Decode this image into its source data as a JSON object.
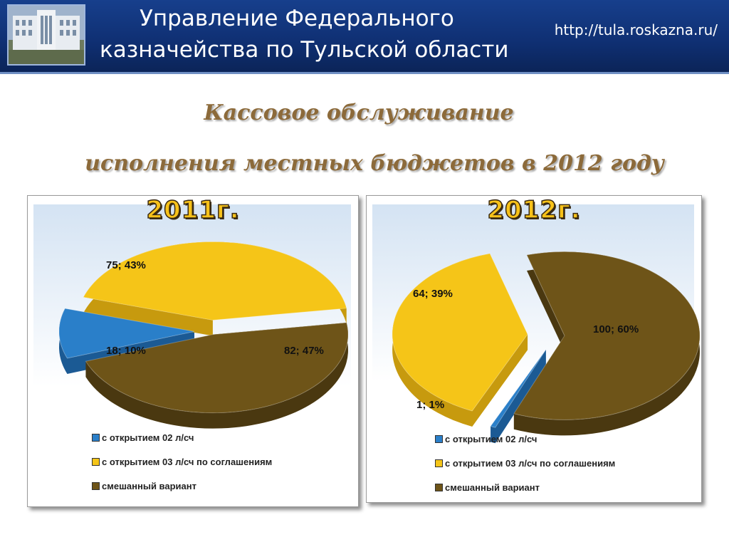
{
  "header": {
    "org_line1": "Управление Федерального",
    "org_line2": "казначейства по Тульской области",
    "url": "http://tula.roskazna.ru/"
  },
  "title": {
    "line1": "Кассовое обслуживание",
    "line2": "исполнения  местных бюджетов в 2012 году"
  },
  "colors": {
    "blue": "#2a7fc9",
    "yellow": "#f5c518",
    "brown": "#6e5418",
    "title": "#8c6a3a"
  },
  "legend": [
    "с открытием 02 л/сч",
    "с открытием 03 л/сч по соглашениям",
    "смешанный вариант"
  ],
  "chart_data": [
    {
      "type": "pie",
      "title": "2011г.",
      "categories": [
        "с открытием 02 л/сч",
        "с открытием 03 л/сч по соглашениям",
        "смешанный вариант"
      ],
      "values": [
        18,
        75,
        82
      ],
      "percents": [
        10,
        43,
        47
      ],
      "labels": [
        "18; 10%",
        "75; 43%",
        "82; 47%"
      ]
    },
    {
      "type": "pie",
      "title": "2012г.",
      "categories": [
        "с открытием 02 л/сч",
        "с открытием 03 л/сч по соглашениям",
        "смешанный вариант"
      ],
      "values": [
        1,
        64,
        100
      ],
      "percents": [
        1,
        39,
        60
      ],
      "labels": [
        "1; 1%",
        "64; 39%",
        "100; 60%"
      ]
    }
  ]
}
